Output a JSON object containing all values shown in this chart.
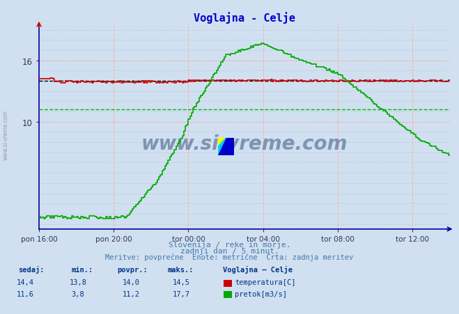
{
  "title": "Voglajna - Celje",
  "title_color": "#0000cc",
  "bg_color": "#d0e0f0",
  "plot_bg_color": "#d0e0f0",
  "temp_color": "#cc0000",
  "flow_color": "#00aa00",
  "avg_temp_color": "#000000",
  "avg_flow_color": "#00bb00",
  "grid_v_color": "#ffaaaa",
  "grid_h_color": "#ddbbbb",
  "grid_h2_color": "#aabbcc",
  "subtitle_color": "#4477aa",
  "table_color": "#003388",
  "watermark": "www.si-vreme.com",
  "watermark_color": "#1a3a6a",
  "sidebar_color": "#888899",
  "xtick_labels": [
    "pon 16:00",
    "pon 20:00",
    "tor 00:00",
    "tor 04:00",
    "tor 08:00",
    "tor 12:00"
  ],
  "xtick_positions": [
    0,
    48,
    96,
    144,
    192,
    240
  ],
  "yticks": [
    10,
    16
  ],
  "xlim": [
    0,
    264
  ],
  "ylim": [
    -0.5,
    19.5
  ],
  "temp_avg": 14.0,
  "flow_avg": 11.2,
  "temp_min": 13.8,
  "temp_max": 14.5,
  "temp_sedaj": 14.4,
  "flow_min": 3.8,
  "flow_max": 17.7,
  "flow_sedaj": 11.6,
  "subtitle1": "Slovenija / reke in morje.",
  "subtitle2": "zadnji dan / 5 minut.",
  "subtitle3": "Meritve: povprečne  Enote: metrične  Črta: zadnja meritev",
  "logo_colors": [
    "#ffff00",
    "#00ccff",
    "#0000cc"
  ]
}
